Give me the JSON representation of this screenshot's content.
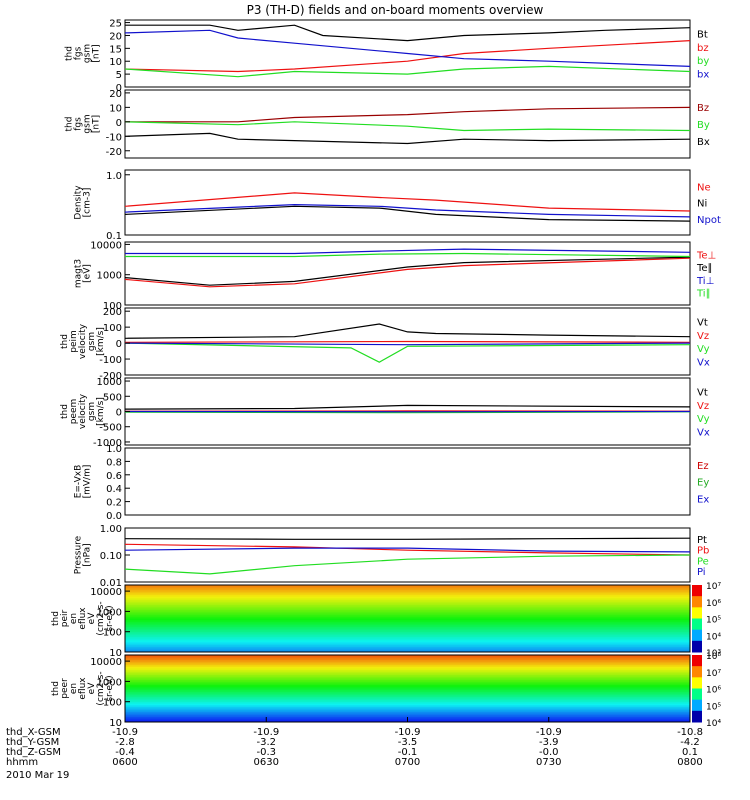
{
  "title": "P3 (TH-D) fields and on-board moments overview",
  "date": "2010 Mar 19",
  "colors": {
    "black": "#000000",
    "red": "#ee1111",
    "green": "#22dd22",
    "blue": "#1111cc",
    "darkred": "#990000"
  },
  "chart_data": {
    "type": "line",
    "panels": [
      {
        "id": "fgs-gsm",
        "ylabel": [
          "thd",
          "fgs",
          "gsm",
          "[nT]"
        ],
        "yscale": "linear",
        "ylim": [
          0,
          26
        ],
        "yticks": [
          "0",
          "5",
          "10",
          "15",
          "20",
          "25"
        ],
        "legend": [
          "Bt",
          "bz",
          "by",
          "bx"
        ],
        "series": [
          {
            "name": "Bt",
            "color": "black",
            "x": [
              0,
              0.15,
              0.2,
              0.3,
              0.35,
              0.5,
              0.6,
              0.75,
              0.85,
              1
            ],
            "y": [
              24,
              24,
              22,
              24,
              20,
              18,
              20,
              21,
              22,
              23
            ]
          },
          {
            "name": "bz",
            "color": "red",
            "x": [
              0,
              0.2,
              0.3,
              0.5,
              0.6,
              0.75,
              1
            ],
            "y": [
              7,
              6,
              7,
              10,
              13,
              15,
              18
            ]
          },
          {
            "name": "by",
            "color": "green",
            "x": [
              0,
              0.2,
              0.3,
              0.5,
              0.6,
              0.75,
              1
            ],
            "y": [
              7,
              4,
              6,
              5,
              7,
              8,
              6
            ]
          },
          {
            "name": "bx",
            "color": "blue",
            "x": [
              0,
              0.15,
              0.2,
              0.3,
              0.5,
              0.6,
              0.75,
              1
            ],
            "y": [
              21,
              22,
              19,
              17,
              13,
              11,
              10,
              8
            ]
          }
        ]
      },
      {
        "id": "fgs-gsm-signed",
        "ylabel": [
          "thd",
          "fgs",
          "gsm",
          "[nT]"
        ],
        "yscale": "linear",
        "ylim": [
          -25,
          22
        ],
        "yticks": [
          "-20",
          "-10",
          "0",
          "10",
          "20"
        ],
        "legend": [
          "Bz",
          "By",
          "Bx"
        ],
        "series": [
          {
            "name": "Bz",
            "color": "darkred",
            "x": [
              0,
              0.2,
              0.3,
              0.5,
              0.6,
              0.75,
              1
            ],
            "y": [
              0,
              0,
              3,
              5,
              7,
              9,
              10
            ]
          },
          {
            "name": "By",
            "color": "green",
            "x": [
              0,
              0.2,
              0.3,
              0.5,
              0.6,
              0.75,
              1
            ],
            "y": [
              0,
              -2,
              0,
              -3,
              -6,
              -5,
              -6
            ]
          },
          {
            "name": "Bx",
            "color": "black",
            "x": [
              0,
              0.15,
              0.2,
              0.3,
              0.5,
              0.6,
              0.75,
              1
            ],
            "y": [
              -10,
              -8,
              -12,
              -13,
              -15,
              -12,
              -13,
              -12
            ]
          }
        ]
      },
      {
        "id": "density",
        "ylabel": [
          "Density",
          "[cm-3]"
        ],
        "yscale": "log",
        "ylim": [
          0.1,
          1.2
        ],
        "yticks": [
          "0.1",
          "1.0"
        ],
        "legend": [
          "Ne",
          "Ni",
          "Npot"
        ],
        "series": [
          {
            "name": "Ne",
            "color": "red",
            "x": [
              0,
              0.3,
              0.45,
              0.55,
              0.75,
              1
            ],
            "y": [
              0.3,
              0.5,
              0.42,
              0.38,
              0.28,
              0.25
            ]
          },
          {
            "name": "Ni",
            "color": "black",
            "x": [
              0,
              0.3,
              0.45,
              0.55,
              0.75,
              1
            ],
            "y": [
              0.22,
              0.3,
              0.28,
              0.22,
              0.18,
              0.17
            ]
          },
          {
            "name": "Npot",
            "color": "blue",
            "x": [
              0,
              0.3,
              0.45,
              0.55,
              0.75,
              1
            ],
            "y": [
              0.24,
              0.32,
              0.3,
              0.26,
              0.22,
              0.2
            ]
          }
        ]
      },
      {
        "id": "temperature",
        "ylabel": [
          "magt3",
          "[eV]"
        ],
        "yscale": "log",
        "ylim": [
          100,
          12000
        ],
        "yticks": [
          "100",
          "1000",
          "10000"
        ],
        "legend": [
          "Te⊥",
          "Te∥",
          "Ti⊥",
          "Ti∥"
        ],
        "series": [
          {
            "name": "Te⊥",
            "color": "red",
            "x": [
              0,
              0.15,
              0.3,
              0.5,
              0.6,
              1
            ],
            "y": [
              700,
              400,
              500,
              1500,
              2000,
              3500
            ]
          },
          {
            "name": "Te∥",
            "color": "black",
            "x": [
              0,
              0.15,
              0.3,
              0.5,
              0.6,
              1
            ],
            "y": [
              800,
              450,
              600,
              1800,
              2500,
              3800
            ]
          },
          {
            "name": "Ti⊥",
            "color": "blue",
            "x": [
              0,
              0.3,
              0.45,
              0.6,
              1
            ],
            "y": [
              5000,
              5000,
              6000,
              7000,
              5500
            ]
          },
          {
            "name": "Ti∥",
            "color": "green",
            "x": [
              0,
              0.3,
              0.45,
              0.6,
              1
            ],
            "y": [
              4000,
              4000,
              4800,
              5000,
              4000
            ]
          }
        ]
      },
      {
        "id": "peim-velocity",
        "ylabel": [
          "thd",
          "peim",
          "velocity",
          "gsm",
          "[km/s]"
        ],
        "yscale": "linear",
        "ylim": [
          -200,
          220
        ],
        "yticks": [
          "-200",
          "-100",
          "0",
          "100",
          "200"
        ],
        "legend": [
          "Vt",
          "Vz",
          "Vy",
          "Vx"
        ],
        "series": [
          {
            "name": "Vt",
            "color": "black",
            "x": [
              0,
              0.3,
              0.45,
              0.5,
              0.55,
              0.75,
              1
            ],
            "y": [
              30,
              40,
              120,
              70,
              60,
              50,
              40
            ]
          },
          {
            "name": "Vz",
            "color": "red",
            "x": [
              0,
              0.5,
              1
            ],
            "y": [
              5,
              10,
              5
            ]
          },
          {
            "name": "Vy",
            "color": "green",
            "x": [
              0,
              0.4,
              0.45,
              0.5,
              1
            ],
            "y": [
              0,
              -30,
              -120,
              -20,
              -10
            ]
          },
          {
            "name": "Vx",
            "color": "blue",
            "x": [
              0,
              0.5,
              1
            ],
            "y": [
              0,
              -10,
              0
            ]
          }
        ]
      },
      {
        "id": "peem-velocity",
        "ylabel": [
          "thd",
          "peem",
          "velocity",
          "gsm",
          "[km/s]"
        ],
        "yscale": "linear",
        "ylim": [
          -1100,
          1100
        ],
        "yticks": [
          "-1000",
          "-500",
          "0",
          "500",
          "1000"
        ],
        "legend": [
          "Vt",
          "Vz",
          "Vy",
          "Vx"
        ],
        "series": [
          {
            "name": "Vt",
            "color": "black",
            "x": [
              0,
              0.3,
              0.5,
              1
            ],
            "y": [
              80,
              100,
              200,
              150
            ]
          },
          {
            "name": "Vz",
            "color": "red",
            "x": [
              0,
              0.5,
              1
            ],
            "y": [
              10,
              20,
              10
            ]
          },
          {
            "name": "Vy",
            "color": "green",
            "x": [
              0,
              0.5,
              1
            ],
            "y": [
              -20,
              -40,
              -10
            ]
          },
          {
            "name": "Vx",
            "color": "blue",
            "x": [
              0,
              0.5,
              1
            ],
            "y": [
              0,
              -10,
              0
            ]
          }
        ]
      },
      {
        "id": "efield",
        "ylabel": [
          "E=-VxB",
          "[mV/m]"
        ],
        "yscale": "linear",
        "ylim": [
          0,
          1
        ],
        "yticks": [
          "0.0",
          "0.2",
          "0.4",
          "0.6",
          "0.8",
          "1.0"
        ],
        "legend": [
          "Ez",
          "Ey",
          "Ex"
        ],
        "series": []
      },
      {
        "id": "pressure",
        "ylabel": [
          "Pressure",
          "[nPa]"
        ],
        "yscale": "log",
        "ylim": [
          0.01,
          1
        ],
        "yticks": [
          "0.01",
          "0.10",
          "1.00"
        ],
        "legend": [
          "Pt",
          "Pb",
          "Pe",
          "Pi"
        ],
        "series": [
          {
            "name": "Pt",
            "color": "black",
            "x": [
              0,
              0.3,
              0.5,
              0.75,
              1
            ],
            "y": [
              0.4,
              0.38,
              0.38,
              0.4,
              0.42
            ]
          },
          {
            "name": "Pb",
            "color": "red",
            "x": [
              0,
              0.3,
              0.5,
              0.75,
              1
            ],
            "y": [
              0.25,
              0.2,
              0.15,
              0.12,
              0.1
            ]
          },
          {
            "name": "Pe",
            "color": "green",
            "x": [
              0,
              0.15,
              0.3,
              0.5,
              0.75,
              1
            ],
            "y": [
              0.03,
              0.02,
              0.04,
              0.07,
              0.09,
              0.1
            ]
          },
          {
            "name": "Pi",
            "color": "blue",
            "x": [
              0,
              0.3,
              0.5,
              0.75,
              1
            ],
            "y": [
              0.15,
              0.18,
              0.18,
              0.14,
              0.13
            ]
          }
        ]
      },
      {
        "id": "peir-efux",
        "type": "heatmap",
        "ylabel": [
          "thd",
          "peir",
          "en",
          "eflux",
          "eV",
          "(cm2-s-",
          "sr-eV)"
        ],
        "yscale": "log",
        "ylim": [
          10,
          20000
        ],
        "yticks": [
          "10",
          "100",
          "1000",
          "10000"
        ],
        "colorbar_ticks": [
          "10³",
          "10⁴",
          "10⁵",
          "10⁶",
          "10⁷"
        ]
      },
      {
        "id": "peer-efux",
        "type": "heatmap",
        "ylabel": [
          "thd",
          "peer",
          "en",
          "eflux",
          "eV",
          "(cm2-s-",
          "sr-eV)"
        ],
        "yscale": "log",
        "ylim": [
          10,
          20000
        ],
        "yticks": [
          "10",
          "100",
          "1000",
          "10000"
        ],
        "colorbar_ticks": [
          "10⁴",
          "10⁵",
          "10⁶",
          "10⁷",
          "10⁸"
        ]
      }
    ],
    "x_axis": {
      "rows": [
        {
          "label": "thd_X-GSM",
          "values": [
            "-10.9",
            "-10.9",
            "-10.9",
            "-10.9",
            "-10.8"
          ]
        },
        {
          "label": "thd_Y-GSM",
          "values": [
            "-2.8",
            "-3.2",
            "-3.5",
            "-3.9",
            "-4.2"
          ]
        },
        {
          "label": "thd_Z-GSM",
          "values": [
            "-0.4",
            "-0.3",
            "-0.1",
            "-0.0",
            "0.1"
          ]
        },
        {
          "label": "hhmm",
          "values": [
            "0600",
            "0630",
            "0700",
            "0730",
            "0800"
          ]
        }
      ]
    }
  }
}
